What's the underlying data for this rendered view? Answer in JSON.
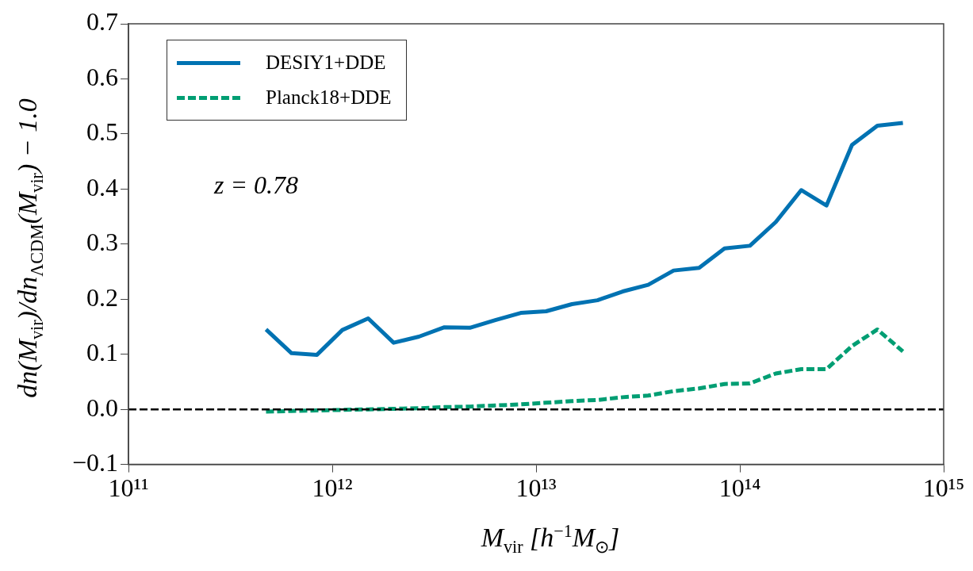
{
  "chart_data": {
    "type": "line",
    "xlabel": "M$_{vir}$ [h$^{−1}$M$_{⊙}$]",
    "ylabel": "dn(M$_{vir}$)/dn$_{ΛCDM}$(M$_{vir}$) − 1.0",
    "x": [
      473000000000.0,
      631000000000.0,
      841000000000.0,
      1120000000000.0,
      1500000000000.0,
      2000000000000.0,
      2660000000000.0,
      3550000000000.0,
      4730000000000.0,
      6310000000000.0,
      8410000000000.0,
      11200000000000.0,
      15000000000000.0,
      20000000000000.0,
      26600000000000.0,
      35500000000000.0,
      47300000000000.0,
      63100000000000.0,
      84100000000000.0,
      112000000000000.0,
      150000000000000.0,
      200000000000000.0,
      266000000000000.0,
      355000000000000.0,
      473000000000000.0,
      631000000000000.0
    ],
    "series": [
      {
        "name": "DESIY1+DDE",
        "color": "#0072b2",
        "line_style": "solid",
        "values": [
          0.145,
          0.102,
          0.099,
          0.144,
          0.165,
          0.121,
          0.132,
          0.149,
          0.148,
          0.162,
          0.175,
          0.178,
          0.191,
          0.198,
          0.214,
          0.226,
          0.252,
          0.257,
          0.292,
          0.297,
          0.34,
          0.398,
          0.37,
          0.48,
          0.515,
          0.52
        ]
      },
      {
        "name": "Planck18+DDE",
        "color": "#009e73",
        "line_style": "dashed",
        "values": [
          -0.004,
          -0.003,
          -0.002,
          -0.001,
          0.0,
          0.001,
          0.002,
          0.004,
          0.005,
          0.007,
          0.009,
          0.012,
          0.015,
          0.017,
          0.022,
          0.025,
          0.033,
          0.038,
          0.046,
          0.047,
          0.065,
          0.073,
          0.073,
          0.115,
          0.145,
          0.105
        ]
      }
    ],
    "log": "x",
    "xlim": [
      100000000000.0,
      1000000000000000.0
    ],
    "xticks": [
      {
        "value": 100000000000.0,
        "label": "10¹¹"
      },
      {
        "value": 1000000000000.0,
        "label": "10¹²"
      },
      {
        "value": 10000000000000.0,
        "label": "10¹³"
      },
      {
        "value": 100000000000000.0,
        "label": "10¹⁴"
      },
      {
        "value": 1000000000000000.0,
        "label": "10¹⁵"
      }
    ],
    "ylim": [
      -0.1,
      0.7
    ],
    "yticks": [
      {
        "value": -0.1,
        "label": "−0.1"
      },
      {
        "value": 0.0,
        "label": "0.0"
      },
      0.1,
      0.2,
      0.3,
      0.4,
      0.5,
      0.6,
      0.7
    ],
    "ref_lines": [
      {
        "axis": "y",
        "value": 0.0,
        "color": "#000000",
        "line_style": "dashed"
      }
    ],
    "annotations": [
      "z = 0.78"
    ],
    "marker": "none",
    "grid": false,
    "legend": "top left"
  }
}
